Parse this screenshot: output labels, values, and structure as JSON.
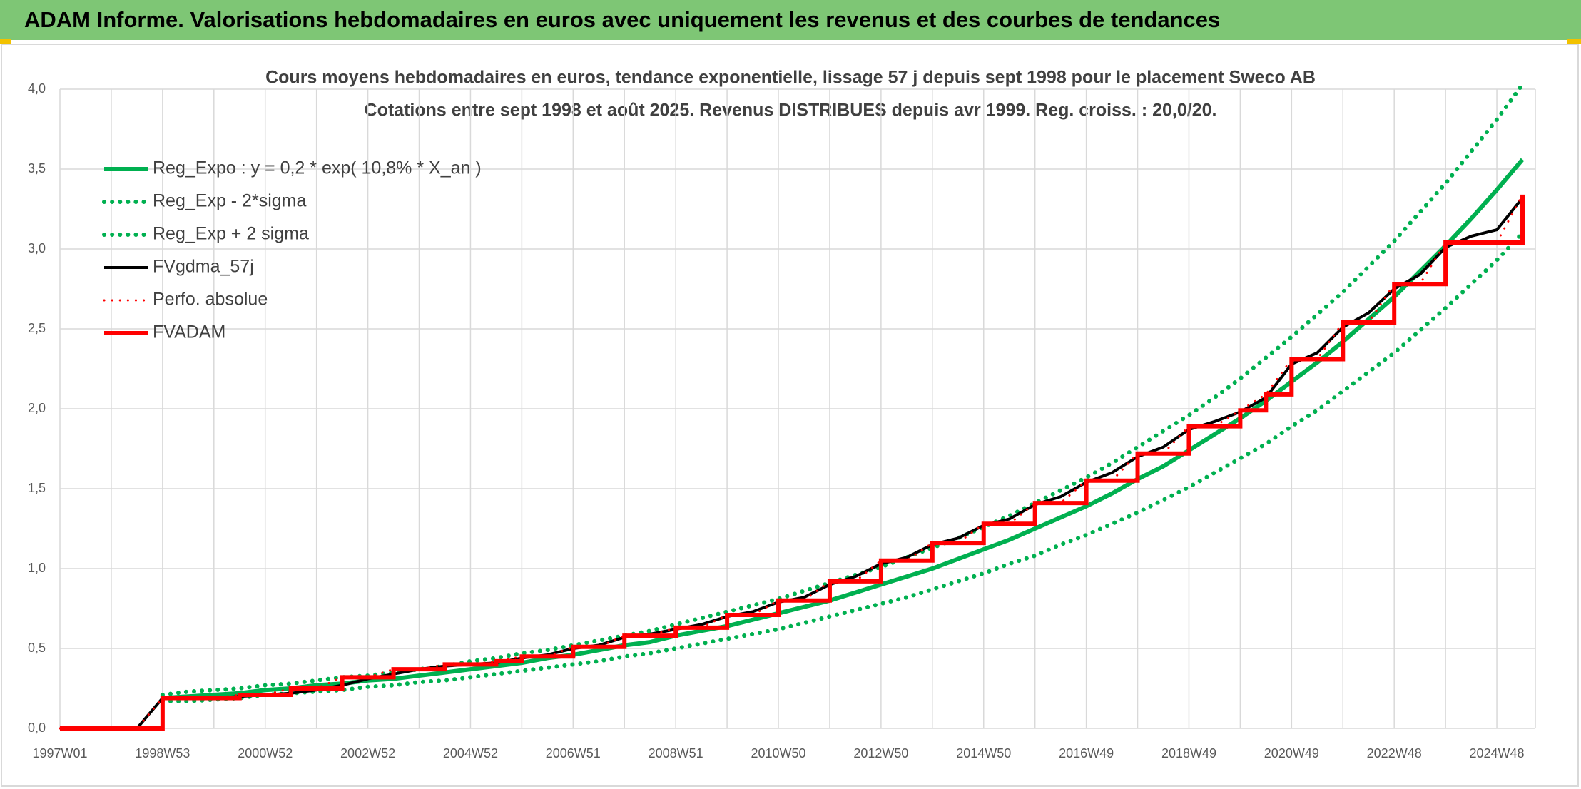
{
  "header": {
    "title": "ADAM Informe. Valorisations hebdomadaires en euros avec uniquement les revenus et des courbes de tendances"
  },
  "chart_data": {
    "type": "line",
    "title": "Cours moyens hebdomadaires en euros, tendance exponentielle, lissage 57 j depuis sept 1998 pour le placement Sweco AB",
    "subtitle": "Cotations entre sept 1998 et août 2025. Revenus DISTRIBUES depuis avr 1999. Reg. croiss. : 20,0/20.",
    "categories": [
      "1997W01",
      null,
      null,
      null,
      "1998W53",
      null,
      null,
      null,
      "2000W52",
      null,
      null,
      null,
      "2002W52",
      null,
      null,
      null,
      "2004W52",
      null,
      null,
      null,
      "2006W51",
      null,
      null,
      null,
      "2008W51",
      null,
      null,
      null,
      "2010W50",
      null,
      null,
      null,
      "2012W50",
      null,
      null,
      null,
      "2014W50",
      null,
      null,
      null,
      "2016W49",
      null,
      null,
      null,
      "2018W49",
      null,
      null,
      null,
      "2020W49",
      null,
      null,
      null,
      "2022W48",
      null,
      null,
      null,
      "2024W48",
      null
    ],
    "ylim": [
      0,
      4
    ],
    "yticks": [
      {
        "value": 0,
        "label": "0,0"
      },
      {
        "value": 0.5,
        "label": "0,5"
      },
      {
        "value": 1,
        "label": "1,0"
      },
      {
        "value": 1.5,
        "label": "1,5"
      },
      {
        "value": 2,
        "label": "2,0"
      },
      {
        "value": 2.5,
        "label": "2,5"
      },
      {
        "value": 3,
        "label": "3,0"
      },
      {
        "value": 3.5,
        "label": "3,5"
      },
      {
        "value": 4,
        "label": "4,0"
      }
    ],
    "grid": true,
    "legend": "top-left",
    "series": [
      {
        "name": "Reg_Expo : y = 0,2 * exp( 10,8% *  X_an )",
        "color": "#00b050",
        "dash": "solid",
        "values": [
          null,
          null,
          null,
          null,
          0.19,
          0.2,
          0.21,
          0.22,
          0.24,
          0.25,
          0.27,
          0.28,
          0.3,
          0.31,
          0.33,
          0.35,
          0.37,
          0.39,
          0.41,
          0.44,
          0.46,
          0.49,
          0.52,
          0.54,
          0.58,
          0.61,
          0.64,
          0.68,
          0.72,
          0.76,
          0.8,
          0.85,
          0.9,
          0.95,
          1.0,
          1.06,
          1.12,
          1.18,
          1.25,
          1.32,
          1.39,
          1.47,
          1.56,
          1.64,
          1.74,
          1.84,
          1.94,
          2.05,
          2.17,
          2.29,
          2.42,
          2.56,
          2.7,
          2.86,
          3.02,
          3.19,
          3.37,
          3.56
        ]
      },
      {
        "name": "Reg_Exp - 2*sigma",
        "color": "#00b050",
        "dash": "dotted",
        "values": [
          null,
          null,
          null,
          null,
          0.17,
          0.17,
          0.18,
          0.19,
          0.21,
          0.22,
          0.23,
          0.24,
          0.26,
          0.27,
          0.29,
          0.3,
          0.32,
          0.34,
          0.36,
          0.38,
          0.4,
          0.42,
          0.45,
          0.47,
          0.5,
          0.53,
          0.56,
          0.59,
          0.62,
          0.66,
          0.7,
          0.74,
          0.78,
          0.82,
          0.87,
          0.92,
          0.97,
          1.03,
          1.08,
          1.15,
          1.21,
          1.28,
          1.35,
          1.43,
          1.51,
          1.6,
          1.69,
          1.78,
          1.89,
          1.99,
          2.11,
          2.23,
          2.35,
          2.49,
          2.63,
          2.78,
          2.93,
          3.1
        ]
      },
      {
        "name": "Reg_Exp + 2 sigma",
        "color": "#00b050",
        "dash": "dotted",
        "values": [
          null,
          null,
          null,
          null,
          0.21,
          0.23,
          0.24,
          0.25,
          0.27,
          0.28,
          0.3,
          0.32,
          0.33,
          0.35,
          0.37,
          0.39,
          0.42,
          0.44,
          0.47,
          0.49,
          0.52,
          0.55,
          0.58,
          0.61,
          0.65,
          0.69,
          0.73,
          0.77,
          0.81,
          0.86,
          0.91,
          0.96,
          1.01,
          1.07,
          1.13,
          1.19,
          1.26,
          1.33,
          1.41,
          1.49,
          1.57,
          1.66,
          1.76,
          1.86,
          1.96,
          2.07,
          2.19,
          2.32,
          2.45,
          2.59,
          2.73,
          2.89,
          3.05,
          3.23,
          3.41,
          3.61,
          3.81,
          4.03
        ]
      },
      {
        "name": "FVgdma_57j",
        "color": "#000000",
        "dash": "solid",
        "values": [
          0,
          0,
          0,
          0,
          0.19,
          0.19,
          0.19,
          0.2,
          0.21,
          0.22,
          0.24,
          0.27,
          0.31,
          0.34,
          0.37,
          0.39,
          0.4,
          0.41,
          0.44,
          0.46,
          0.5,
          0.52,
          0.57,
          0.59,
          0.62,
          0.65,
          0.7,
          0.73,
          0.79,
          0.82,
          0.9,
          0.95,
          1.03,
          1.07,
          1.15,
          1.19,
          1.27,
          1.31,
          1.4,
          1.45,
          1.54,
          1.6,
          1.7,
          1.76,
          1.87,
          1.92,
          1.98,
          2.07,
          2.28,
          2.35,
          2.51,
          2.6,
          2.75,
          2.84,
          3.01,
          3.08,
          3.12,
          3.32
        ]
      },
      {
        "name": "Perfo. absolue",
        "color": "#ff0000",
        "dash": "dotted",
        "values": [
          0,
          0,
          0,
          0,
          0.19,
          0.19,
          0.19,
          0.21,
          0.21,
          0.25,
          0.25,
          0.32,
          0.32,
          0.37,
          0.37,
          0.4,
          0.4,
          0.42,
          0.45,
          0.45,
          0.51,
          0.51,
          0.58,
          0.58,
          0.63,
          0.63,
          0.71,
          0.71,
          0.8,
          0.8,
          0.92,
          0.92,
          1.05,
          1.05,
          1.16,
          1.16,
          1.28,
          1.28,
          1.41,
          1.41,
          1.55,
          1.55,
          1.72,
          1.72,
          1.89,
          1.89,
          1.99,
          2.09,
          2.31,
          2.31,
          2.54,
          2.54,
          2.78,
          2.78,
          3.04,
          3.04,
          3.04,
          3.34
        ]
      },
      {
        "name": "FVADAM",
        "color": "#ff0000",
        "dash": "solid",
        "step": true,
        "values": [
          0,
          0,
          0,
          0,
          0.19,
          0.19,
          0.19,
          0.21,
          0.21,
          0.25,
          0.25,
          0.32,
          0.32,
          0.37,
          0.37,
          0.4,
          0.4,
          0.42,
          0.45,
          0.45,
          0.51,
          0.51,
          0.58,
          0.58,
          0.63,
          0.63,
          0.71,
          0.71,
          0.8,
          0.8,
          0.92,
          0.92,
          1.05,
          1.05,
          1.16,
          1.16,
          1.28,
          1.28,
          1.41,
          1.41,
          1.55,
          1.55,
          1.72,
          1.72,
          1.89,
          1.89,
          1.99,
          2.09,
          2.31,
          2.31,
          2.54,
          2.54,
          2.78,
          2.78,
          3.04,
          3.04,
          3.04,
          3.34
        ]
      }
    ]
  }
}
